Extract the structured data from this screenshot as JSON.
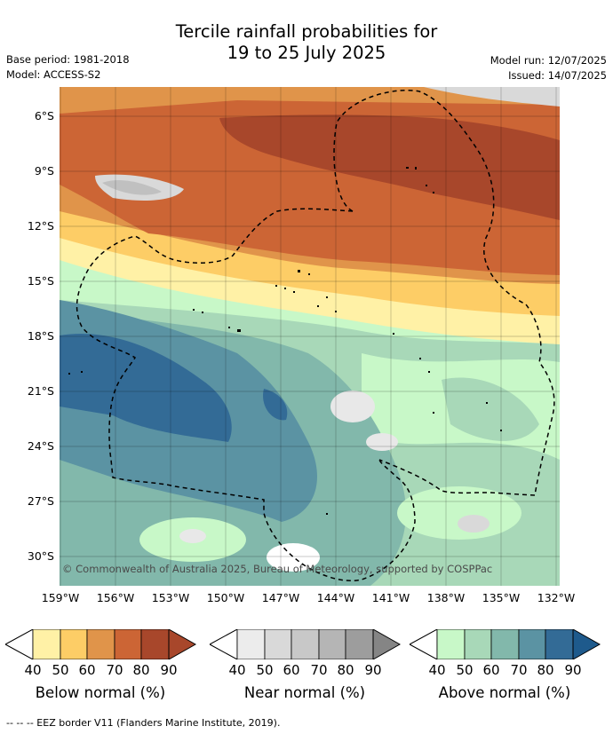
{
  "title_line1": "Tercile rainfall probabilities for",
  "title_line2": "19 to 25 July 2025",
  "base_period": "Base period: 1981-2018",
  "model": "Model: ACCESS-S2",
  "model_run": "Model run: 12/07/2025",
  "issued": "Issued: 14/07/2025",
  "lat_labels": [
    "6°S",
    "9°S",
    "12°S",
    "15°S",
    "18°S",
    "21°S",
    "24°S",
    "27°S",
    "30°S"
  ],
  "lon_labels": [
    "159°W",
    "156°W",
    "153°W",
    "150°W",
    "147°W",
    "144°W",
    "141°W",
    "138°W",
    "135°W",
    "132°W"
  ],
  "credit": "© Commonwealth of Australia 2025, Bureau of Meteorology, supported by COSPPac",
  "colorbars": [
    {
      "title": "Below normal (%)",
      "ticks": [
        "40",
        "50",
        "60",
        "70",
        "80",
        "90"
      ],
      "colors": [
        "#fff1a6",
        "#fdcd66",
        "#e0944a",
        "#cc6535",
        "#a8472b"
      ]
    },
    {
      "title": "Near normal (%)",
      "ticks": [
        "40",
        "50",
        "60",
        "70",
        "80",
        "90"
      ],
      "colors": [
        "#ececec",
        "#d9d9d9",
        "#c8c8c8",
        "#b5b5b5",
        "#9d9d9d"
      ]
    },
    {
      "title": "Above normal (%)",
      "ticks": [
        "40",
        "50",
        "60",
        "70",
        "80",
        "90"
      ],
      "colors": [
        "#c8f8c8",
        "#a8d8b8",
        "#82b8ab",
        "#5b93a3",
        "#336b96"
      ]
    }
  ],
  "footer": "-- -- -- EEZ border V11 (Flanders Marine Institute, 2019)."
}
